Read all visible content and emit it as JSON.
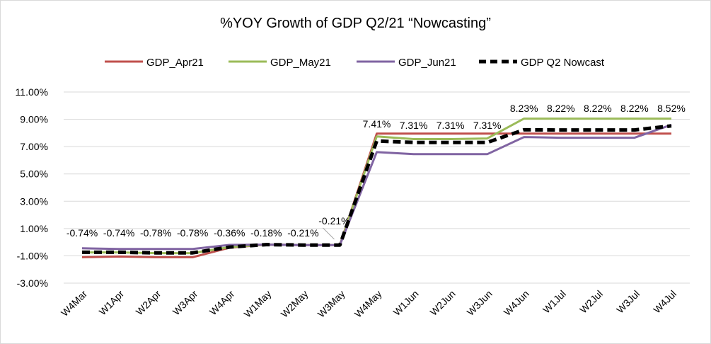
{
  "chart_data": {
    "type": "line",
    "title": "%YOY Growth of GDP Q2/21 “Nowcasting”",
    "xlabel": "",
    "ylabel": "",
    "ylim": [
      -3,
      11
    ],
    "yticks": [
      "-3.00%",
      "-1.00%",
      "1.00%",
      "3.00%",
      "5.00%",
      "7.00%",
      "9.00%",
      "11.00%"
    ],
    "ytick_values": [
      -3,
      -1,
      1,
      3,
      5,
      7,
      9,
      11
    ],
    "grid": "horizontal",
    "legend_position": "top",
    "categories": [
      "W4Mar",
      "W1Apr",
      "W2Apr",
      "W3Apr",
      "W4Apr",
      "W1May",
      "W2May",
      "W3May",
      "W4May",
      "W1Jun",
      "W2Jun",
      "W3Jun",
      "W4Jun",
      "W1Jul",
      "W2Jul",
      "W3Jul",
      "W4Jul"
    ],
    "series": [
      {
        "name": "GDP_Apr21",
        "color": "#c0504d",
        "dashed": false,
        "values": [
          -1.1,
          -1.05,
          -1.1,
          -1.1,
          -0.4,
          -0.18,
          -0.21,
          -0.21,
          7.95,
          7.95,
          7.95,
          7.95,
          7.95,
          7.95,
          7.95,
          7.95,
          7.95
        ]
      },
      {
        "name": "GDP_May21",
        "color": "#9bbb59",
        "dashed": false,
        "values": [
          -0.75,
          -0.75,
          -0.8,
          -0.8,
          -0.36,
          -0.18,
          -0.21,
          -0.21,
          7.75,
          7.55,
          7.55,
          7.6,
          9.05,
          9.05,
          9.05,
          9.05,
          9.05
        ]
      },
      {
        "name": "GDP_Jun21",
        "color": "#8064a2",
        "dashed": false,
        "values": [
          -0.45,
          -0.5,
          -0.5,
          -0.5,
          -0.2,
          -0.18,
          -0.21,
          -0.21,
          6.6,
          6.45,
          6.45,
          6.45,
          7.7,
          7.65,
          7.65,
          7.65,
          8.6
        ]
      },
      {
        "name": "GDP Q2 Nowcast",
        "color": "#000000",
        "dashed": true,
        "values": [
          -0.74,
          -0.74,
          -0.78,
          -0.78,
          -0.36,
          -0.18,
          -0.21,
          -0.21,
          7.41,
          7.31,
          7.31,
          7.31,
          8.23,
          8.22,
          8.22,
          8.22,
          8.52
        ]
      }
    ],
    "data_labels": [
      "-0.74%",
      "-0.74%",
      "-0.78%",
      "-0.78%",
      "-0.36%",
      "-0.18%",
      "-0.21%",
      "-0.21%",
      "7.41%",
      "7.31%",
      "7.31%",
      "7.31%",
      "8.23%",
      "8.22%",
      "8.22%",
      "8.22%",
      "8.52%"
    ]
  }
}
